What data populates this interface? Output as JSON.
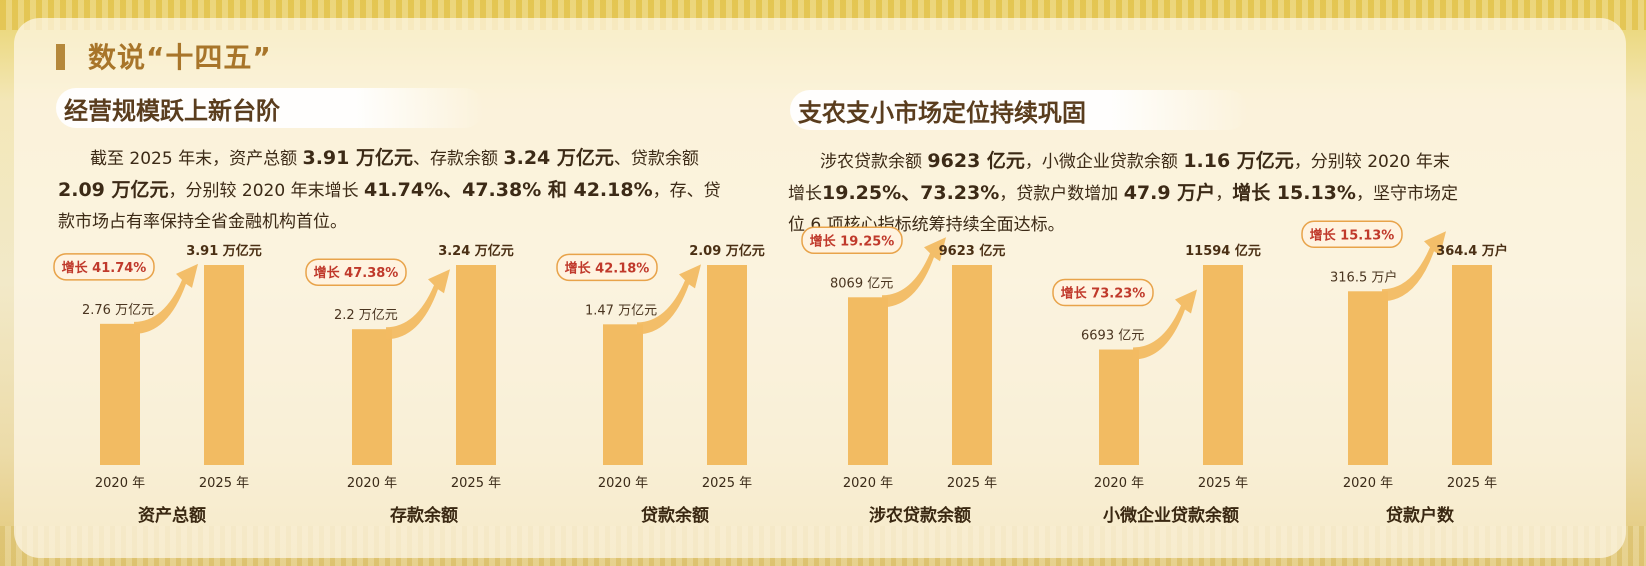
{
  "header": {
    "title": "数说“十四五”"
  },
  "left": {
    "subtitle": "经营规模跃上新台阶",
    "paragraph": {
      "l1a": "截至 2025 年末，资产总额 ",
      "l1b": "3.91 万亿元",
      "l1c": "、存款余额 ",
      "l1d": "3.24 万亿元",
      "l1e": "、贷款余额",
      "l2a": "2.09 万亿元",
      "l2b": "，分别较 2020 年末增长 ",
      "l2c": "41.74%、47.38% 和 42.18%",
      "l2d": "，存、贷",
      "l3": "款市场占有率保持全省金融机构首位。"
    }
  },
  "right": {
    "subtitle": "支农支小市场定位持续巩固",
    "paragraph": {
      "l1a": "涉农贷款余额 ",
      "l1b": "9623 亿元",
      "l1c": "，小微企业贷款余额 ",
      "l1d": "1.16 万亿元",
      "l1e": "，分别较 2020 年末",
      "l2a": "增长",
      "l2b": "19.25%、73.23%",
      "l2c": "，贷款户数增加 ",
      "l2d": "47.9 万户",
      "l2e": "，",
      "l2f": "增长 15.13%",
      "l2g": "，坚守市场定",
      "l3": "位 6 项核心指标统筹持续全面达标。"
    }
  },
  "chart_data": [
    {
      "type": "bar",
      "title": "资产总额",
      "categories": [
        "2020 年",
        "2025 年"
      ],
      "values": [
        2.76,
        3.91
      ],
      "value_labels": [
        "2.76 万亿元",
        "3.91 万亿元"
      ],
      "growth": "增长 41.74%"
    },
    {
      "type": "bar",
      "title": "存款余额",
      "categories": [
        "2020 年",
        "2025 年"
      ],
      "values": [
        2.2,
        3.24
      ],
      "value_labels": [
        "2.2 万亿元",
        "3.24 万亿元"
      ],
      "growth": "增长 47.38%"
    },
    {
      "type": "bar",
      "title": "贷款余额",
      "categories": [
        "2020 年",
        "2025 年"
      ],
      "values": [
        1.47,
        2.09
      ],
      "value_labels": [
        "1.47 万亿元",
        "2.09 万亿元"
      ],
      "growth": "增长 42.18%"
    },
    {
      "type": "bar",
      "title": "涉农贷款余额",
      "categories": [
        "2020 年",
        "2025 年"
      ],
      "values": [
        8069,
        9623
      ],
      "value_labels": [
        "8069 亿元",
        "9623 亿元"
      ],
      "growth": "增长 19.25%"
    },
    {
      "type": "bar",
      "title": "小微企业贷款余额",
      "categories": [
        "2020 年",
        "2025 年"
      ],
      "values": [
        6693,
        11594
      ],
      "value_labels": [
        "6693 亿元",
        "11594 亿元"
      ],
      "growth": "增长 73.23%"
    },
    {
      "type": "bar",
      "title": "贷款户数",
      "categories": [
        "2020 年",
        "2025 年"
      ],
      "values": [
        316.5,
        364.4
      ],
      "value_labels": [
        "316.5 万户",
        "364.4 万户"
      ],
      "growth": "增长 15.13%"
    }
  ]
}
